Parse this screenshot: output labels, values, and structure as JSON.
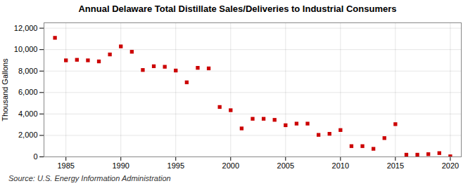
{
  "chart_data": {
    "type": "scatter",
    "title": "Annual Delaware Total Distillate Sales/Deliveries to Industrial Consumers",
    "ylabel": "Thousand Gallons",
    "annotations": [
      "Source: U.S. Energy Information Administration"
    ],
    "x": [
      1984,
      1985,
      1986,
      1987,
      1988,
      1989,
      1990,
      1991,
      1992,
      1993,
      1994,
      1995,
      1996,
      1997,
      1998,
      1999,
      2000,
      2001,
      2002,
      2003,
      2004,
      2005,
      2006,
      2007,
      2008,
      2009,
      2010,
      2011,
      2012,
      2013,
      2014,
      2015,
      2016,
      2017,
      2018,
      2019,
      2020
    ],
    "values": [
      11100,
      9000,
      9050,
      9000,
      8900,
      9550,
      10300,
      9800,
      8100,
      8450,
      8400,
      8050,
      6950,
      8300,
      8250,
      4650,
      4350,
      2650,
      3550,
      3550,
      3450,
      2950,
      3100,
      3100,
      2050,
      2150,
      2500,
      1000,
      1000,
      750,
      1750,
      3050,
      200,
      200,
      250,
      350,
      50
    ],
    "color": "#cc0000",
    "marker": "square",
    "xlim": [
      1983,
      2021
    ],
    "ylim": [
      0,
      12500
    ],
    "xticks": [
      1985,
      1990,
      1995,
      2000,
      2005,
      2010,
      2015,
      2020
    ],
    "yticks": [
      0,
      {
        "value": 2000,
        "label": "2,000"
      },
      {
        "value": 4000,
        "label": "4,000"
      },
      {
        "value": 6000,
        "label": "6,000"
      },
      {
        "value": 8000,
        "label": "8,000"
      },
      {
        "value": 10000,
        "label": "10,000"
      },
      {
        "value": 12000,
        "label": "12,000"
      }
    ],
    "grid": true
  }
}
